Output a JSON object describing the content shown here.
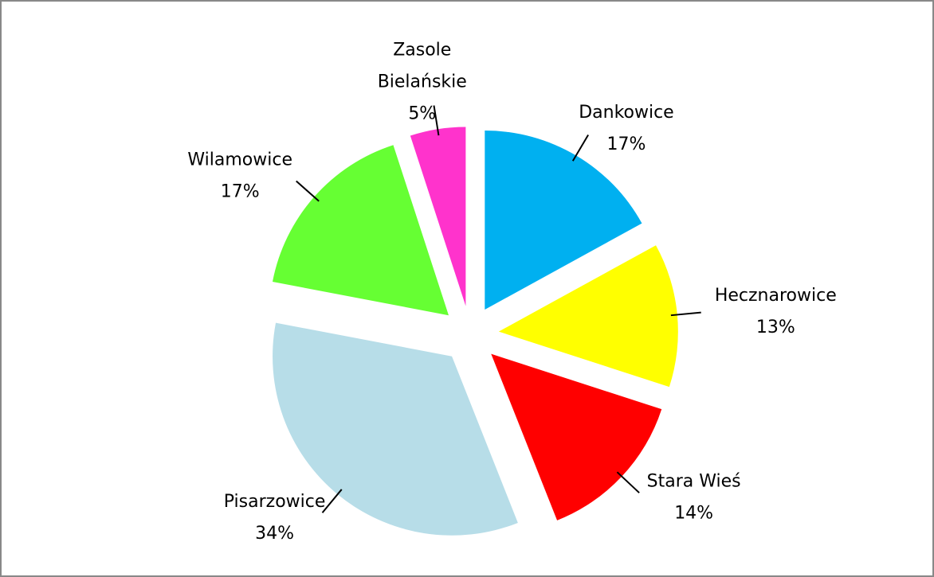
{
  "chart_data": {
    "type": "pie",
    "categories": [
      "Dankowice",
      "Hecznarowice",
      "Stara Wieś",
      "Pisarzowice",
      "Wilamowice",
      "Zasole Bielańskie"
    ],
    "values": [
      17,
      13,
      14,
      34,
      17,
      5
    ],
    "value_labels": [
      "17%",
      "13%",
      "14%",
      "34%",
      "17%",
      "5%"
    ],
    "colors": [
      "#00b0f0",
      "#ffff00",
      "#ff0000",
      "#b7dde8",
      "#66ff33",
      "#ff33cc"
    ]
  }
}
